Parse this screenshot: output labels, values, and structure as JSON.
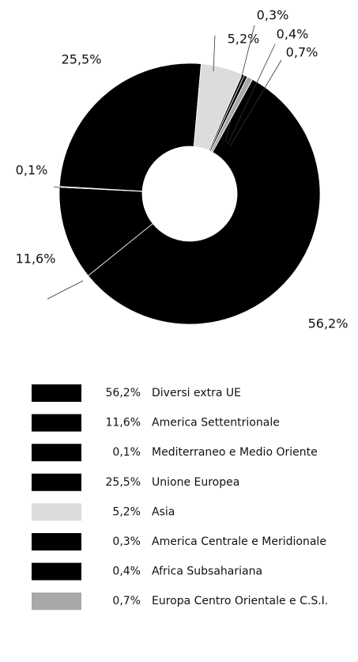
{
  "chart_data": {
    "type": "donut",
    "categories": [
      "Diversi extra UE",
      "America Settentrionale",
      "Mediterraneo e Medio Oriente",
      "Unione Europea",
      "Asia",
      "America Centrale e Meridionale",
      "Africa Subsahariana",
      "Europa Centro Orientale e C.S.I."
    ],
    "values": [
      56.2,
      11.6,
      0.1,
      25.5,
      5.2,
      0.3,
      0.4,
      0.7
    ],
    "value_labels": [
      "56,2%",
      "11,6%",
      "0,1%",
      "25,5%",
      "5,2%",
      "0,3%",
      "0,4%",
      "0,7%"
    ],
    "colors": [
      "#000000",
      "#000000",
      "#000000",
      "#000000",
      "#dcdcdc",
      "#000000",
      "#000000",
      "#a8a8a8"
    ]
  }
}
